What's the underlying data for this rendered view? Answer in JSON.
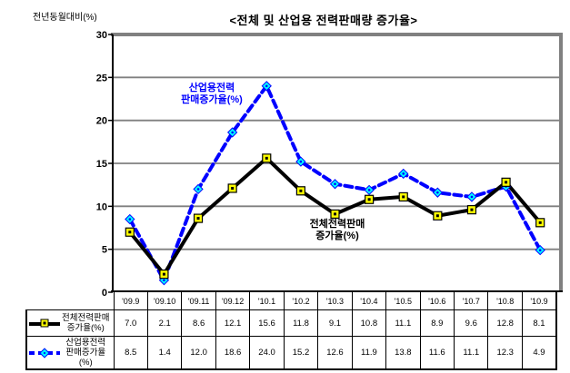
{
  "title": "<전체 및 산업용 전력판매량 증가율>",
  "y_axis_label": "전년동월대비(%)",
  "annotations": {
    "industrial": "산업용전력\n판매증가율(%)",
    "total": "전체전력판매\n증가율(%)"
  },
  "colors": {
    "total_line": "#000000",
    "total_marker_fill": "#ffff00",
    "industrial_line": "#0000ff",
    "industrial_marker_fill": "#00ffff",
    "gridline": "#808080",
    "plot_border_gray": "#808080",
    "axis_black": "#000000",
    "background": "#ffffff"
  },
  "chart_data": {
    "type": "line",
    "title": "<전체 및 산업용 전력판매량 증가율>",
    "ylabel": "전년동월대비(%)",
    "categories": [
      "'09.9",
      "'09.10",
      "'09.11",
      "'09.12",
      "'10.1",
      "'10.2",
      "'10.3",
      "'10.4",
      "'10.5",
      "'10.6",
      "'10.7",
      "'10.8",
      "'10.9"
    ],
    "series": [
      {
        "name": "전체전력판매 증가율(%)",
        "values": [
          7.0,
          2.1,
          8.6,
          12.1,
          15.6,
          11.8,
          9.1,
          10.8,
          11.1,
          8.9,
          9.6,
          12.8,
          8.1
        ],
        "color": "#000000",
        "line_style": "solid",
        "marker": "square",
        "marker_fill": "#ffff00"
      },
      {
        "name": "산업용전력 판매증가율(%)",
        "values": [
          8.5,
          1.4,
          12.0,
          18.6,
          24.0,
          15.2,
          12.6,
          11.9,
          13.8,
          11.6,
          11.1,
          12.3,
          4.9
        ],
        "color": "#0000ff",
        "line_style": "dashed",
        "marker": "diamond",
        "marker_fill": "#00ffff"
      }
    ],
    "ylim": [
      0,
      30
    ],
    "yticks": [
      0,
      5,
      10,
      15,
      20,
      25,
      30
    ],
    "grid": true,
    "legend_position": "table-rows"
  },
  "table": {
    "row_labels": [
      "전체전력판매\n증가율(%)",
      "산업용전력\n판매증가율(%)"
    ],
    "value_decimals": 1
  }
}
